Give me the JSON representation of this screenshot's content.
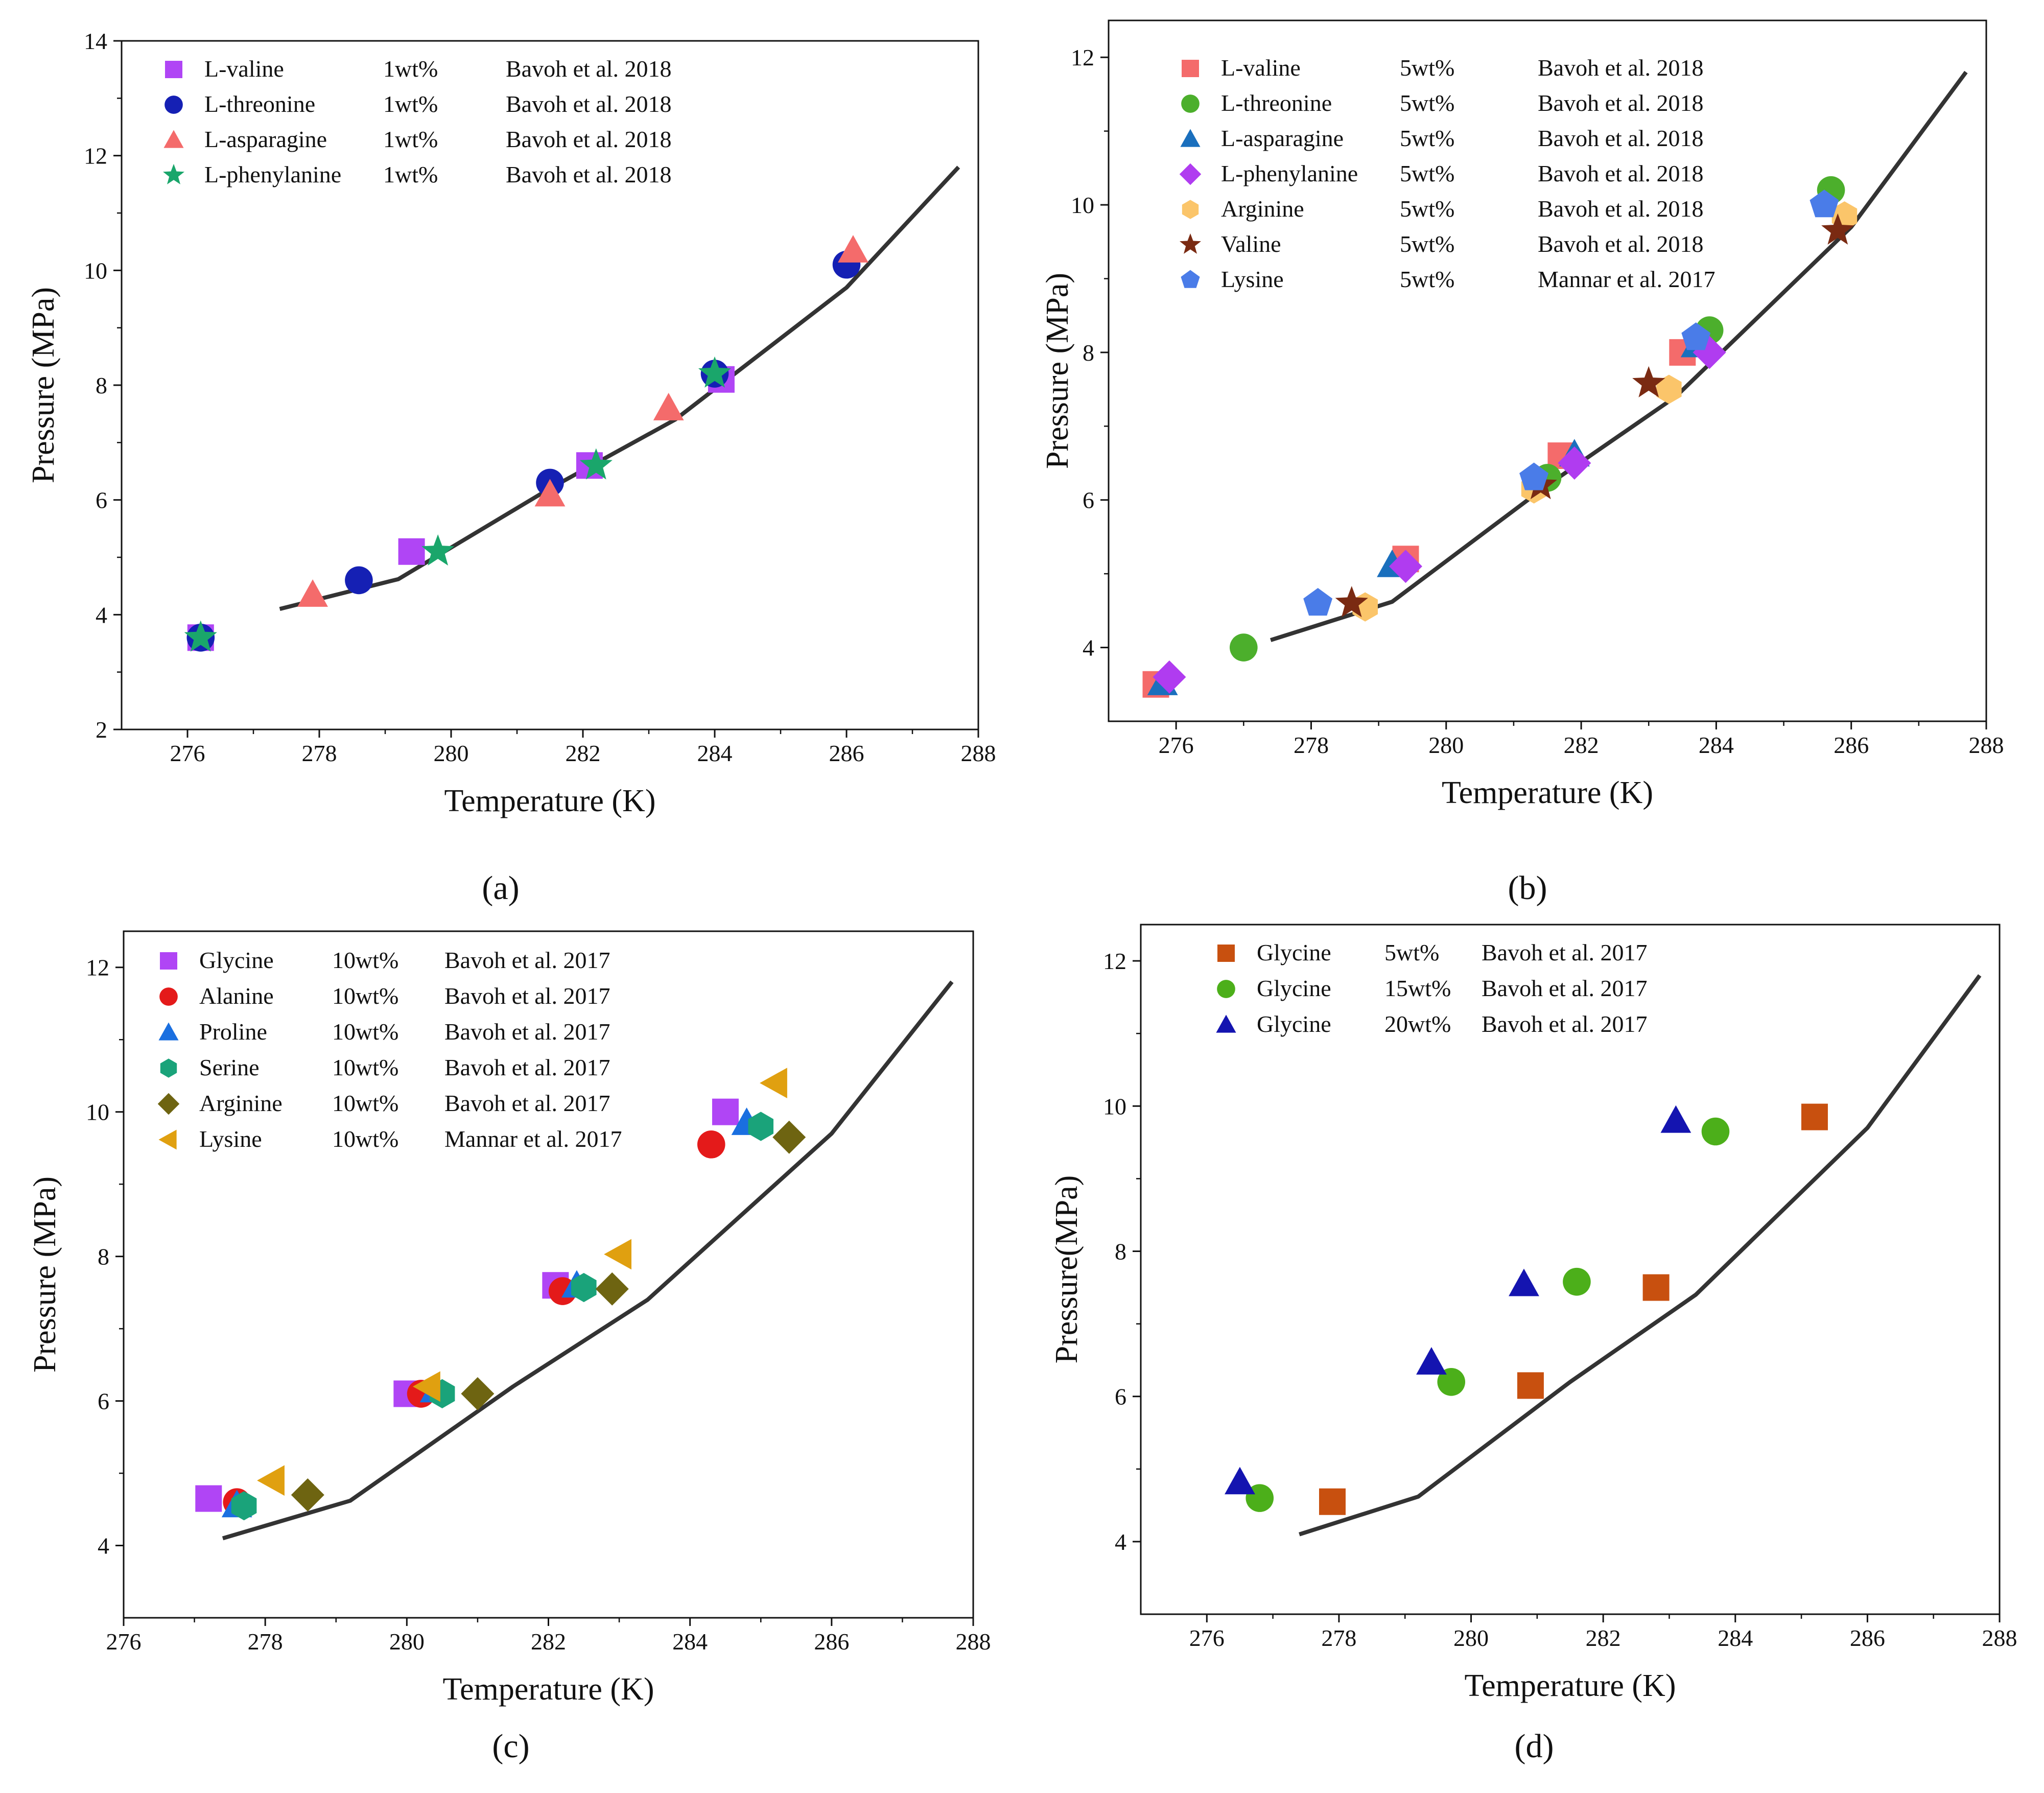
{
  "chart_data": [
    {
      "type": "scatter",
      "panel_label": "(a)",
      "xlabel": "Temperature (K)",
      "ylabel": "Pressure (MPa)",
      "xlim": [
        275,
        288
      ],
      "ylim": [
        2,
        14
      ],
      "xticks": [
        "276",
        "278",
        "280",
        "282",
        "284",
        "286",
        "288"
      ],
      "yticks": [
        "2",
        "4",
        "6",
        "8",
        "10",
        "12",
        "14"
      ],
      "legend_position": "top-left",
      "series": [
        {
          "name": "L-valine",
          "conc": "1wt%",
          "ref": "Bavoh et al. 2018",
          "marker": "square",
          "color": "#b045f5",
          "points": [
            [
              276.2,
              3.6
            ],
            [
              279.4,
              5.1
            ],
            [
              282.1,
              6.6
            ],
            [
              284.1,
              8.1
            ]
          ]
        },
        {
          "name": "L-threonine",
          "conc": "1wt%",
          "ref": "Bavoh et al. 2018",
          "marker": "circle",
          "color": "#1520b4",
          "points": [
            [
              276.2,
              3.6
            ],
            [
              278.6,
              4.6
            ],
            [
              281.5,
              6.3
            ],
            [
              284.0,
              8.2
            ],
            [
              286.0,
              10.1
            ]
          ]
        },
        {
          "name": "L-asparagine",
          "conc": "1wt%",
          "ref": "Bavoh et al. 2018",
          "marker": "triangle",
          "color": "#f46b6b",
          "points": [
            [
              277.9,
              4.35
            ],
            [
              281.5,
              6.1
            ],
            [
              283.3,
              7.6
            ],
            [
              286.1,
              10.35
            ]
          ]
        },
        {
          "name": "L-phenylanine",
          "conc": "1wt%",
          "ref": "Bavoh et al. 2018",
          "marker": "star",
          "color": "#1aa66b",
          "points": [
            [
              276.2,
              3.6
            ],
            [
              279.8,
              5.1
            ],
            [
              282.2,
              6.6
            ],
            [
              284.0,
              8.2
            ]
          ]
        }
      ],
      "model_line": [
        [
          277.4,
          4.1
        ],
        [
          279.2,
          4.62
        ],
        [
          281.5,
          6.2
        ],
        [
          283.4,
          7.4
        ],
        [
          286.0,
          9.7
        ],
        [
          287.7,
          11.8
        ]
      ]
    },
    {
      "type": "scatter",
      "panel_label": "(b)",
      "xlabel": "Temperature (K)",
      "ylabel": "Pressure (MPa)",
      "xlim": [
        275,
        288
      ],
      "ylim": [
        3,
        12.5
      ],
      "xticks": [
        "276",
        "278",
        "280",
        "282",
        "284",
        "286",
        "288"
      ],
      "yticks": [
        "4",
        "6",
        "8",
        "10",
        "12"
      ],
      "legend_position": "top-left",
      "series": [
        {
          "name": "L-valine",
          "conc": "5wt%",
          "ref": "Bavoh et al. 2018",
          "marker": "square",
          "color": "#f46b6b",
          "points": [
            [
              275.7,
              3.5
            ],
            [
              279.4,
              5.2
            ],
            [
              281.7,
              6.6
            ],
            [
              283.5,
              8.0
            ]
          ]
        },
        {
          "name": "L-threonine",
          "conc": "5wt%",
          "ref": "Bavoh et al. 2018",
          "marker": "circle",
          "color": "#4caf2c",
          "points": [
            [
              277.0,
              4.0
            ],
            [
              281.5,
              6.3
            ],
            [
              283.9,
              8.3
            ],
            [
              285.7,
              10.2
            ]
          ]
        },
        {
          "name": "L-asparagine",
          "conc": "5wt%",
          "ref": "Bavoh et al. 2018",
          "marker": "triangle",
          "color": "#1a6fbd",
          "points": [
            [
              275.8,
              3.52
            ],
            [
              279.2,
              5.12
            ],
            [
              281.9,
              6.62
            ],
            [
              283.7,
              8.1
            ]
          ]
        },
        {
          "name": "L-phenylanine",
          "conc": "5wt%",
          "ref": "Bavoh et al.  2018",
          "marker": "diamond",
          "color": "#b03cf0",
          "points": [
            [
              275.9,
              3.6
            ],
            [
              279.4,
              5.1
            ],
            [
              281.9,
              6.5
            ],
            [
              283.9,
              8.0
            ]
          ]
        },
        {
          "name": "Arginine",
          "conc": "5wt%",
          "ref": "Bavoh et al.  2018",
          "marker": "hexagon",
          "color": "#fbc56a",
          "points": [
            [
              278.8,
              4.55
            ],
            [
              281.3,
              6.15
            ],
            [
              283.3,
              7.5
            ],
            [
              285.9,
              9.85
            ]
          ]
        },
        {
          "name": "Valine",
          "conc": "5wt%",
          "ref": "Bavoh et al.  2018",
          "marker": "star",
          "color": "#7a2a12",
          "points": [
            [
              278.6,
              4.6
            ],
            [
              281.4,
              6.2
            ],
            [
              283.0,
              7.58
            ],
            [
              285.8,
              9.65
            ]
          ]
        },
        {
          "name": "Lysine",
          "conc": "5wt%",
          "ref": "Mannar et al. 2017",
          "marker": "pentagon",
          "color": "#4a7ce8",
          "points": [
            [
              278.1,
              4.6
            ],
            [
              281.3,
              6.3
            ],
            [
              283.7,
              8.2
            ],
            [
              285.6,
              10.0
            ]
          ]
        }
      ],
      "model_line": [
        [
          277.4,
          4.1
        ],
        [
          279.2,
          4.62
        ],
        [
          281.5,
          6.2
        ],
        [
          283.4,
          7.4
        ],
        [
          286.0,
          9.7
        ],
        [
          287.7,
          11.8
        ]
      ]
    },
    {
      "type": "scatter",
      "panel_label": "(c)",
      "xlabel": "Temperature (K)",
      "ylabel": "Pressure (MPa)",
      "xlim": [
        276,
        288
      ],
      "ylim": [
        3,
        12.5
      ],
      "xticks": [
        "276",
        "278",
        "280",
        "282",
        "284",
        "286",
        "288"
      ],
      "yticks": [
        "4",
        "6",
        "8",
        "10",
        "12"
      ],
      "legend_position": "top-left",
      "series": [
        {
          "name": "Glycine",
          "conc": "10wt%",
          "ref": "Bavoh et al. 2017",
          "marker": "square",
          "color": "#b045f5",
          "points": [
            [
              277.2,
              4.65
            ],
            [
              280.0,
              6.1
            ],
            [
              282.1,
              7.6
            ],
            [
              284.5,
              10.0
            ]
          ]
        },
        {
          "name": "Alanine",
          "conc": "10wt%",
          "ref": "Bavoh et al. 2017",
          "marker": "circle",
          "color": "#e41a1a",
          "points": [
            [
              277.6,
              4.6
            ],
            [
              280.2,
              6.1
            ],
            [
              282.2,
              7.52
            ],
            [
              284.3,
              9.55
            ]
          ]
        },
        {
          "name": "Proline",
          "conc": "10wt%",
          "ref": "Bavoh et al. 2017",
          "marker": "triangle",
          "color": "#1a6fe0",
          "points": [
            [
              277.6,
              4.56
            ],
            [
              280.4,
              6.15
            ],
            [
              282.4,
              7.6
            ],
            [
              284.8,
              9.85
            ]
          ]
        },
        {
          "name": "Serine",
          "conc": "10wt%",
          "ref": "Bavoh et al. 2017",
          "marker": "hexagon",
          "color": "#1aa37a",
          "points": [
            [
              277.7,
              4.55
            ],
            [
              280.5,
              6.1
            ],
            [
              282.5,
              7.57
            ],
            [
              285.0,
              9.8
            ]
          ]
        },
        {
          "name": "Arginine",
          "conc": "10wt%",
          "ref": "Bavoh et al. 2017",
          "marker": "diamond",
          "color": "#6e6411",
          "points": [
            [
              278.6,
              4.7
            ],
            [
              281.0,
              6.1
            ],
            [
              282.9,
              7.55
            ],
            [
              285.4,
              9.65
            ]
          ]
        },
        {
          "name": "Lysine",
          "conc": "10wt%",
          "ref": "Mannar et al. 2017",
          "marker": "triangle-left",
          "color": "#e0a010",
          "points": [
            [
              278.1,
              4.9
            ],
            [
              280.3,
              6.2
            ],
            [
              283.0,
              8.03
            ],
            [
              285.2,
              10.4
            ]
          ]
        }
      ],
      "model_line": [
        [
          277.4,
          4.1
        ],
        [
          279.2,
          4.62
        ],
        [
          281.5,
          6.2
        ],
        [
          283.4,
          7.4
        ],
        [
          286.0,
          9.7
        ],
        [
          287.7,
          11.8
        ]
      ]
    },
    {
      "type": "scatter",
      "panel_label": "(d)",
      "xlabel": "Temperature (K)",
      "ylabel": "Pressure(MPa)",
      "xlim": [
        275,
        288
      ],
      "ylim": [
        3,
        12.5
      ],
      "xticks": [
        "276",
        "278",
        "280",
        "282",
        "284",
        "286",
        "288"
      ],
      "yticks": [
        "4",
        "6",
        "8",
        "10",
        "12"
      ],
      "legend_position": "top-left",
      "series": [
        {
          "name": "Glycine",
          "conc": "5wt%",
          "ref": "Bavoh et al. 2017",
          "marker": "square",
          "color": "#c8500f",
          "points": [
            [
              277.9,
              4.55
            ],
            [
              280.9,
              6.15
            ],
            [
              282.8,
              7.5
            ],
            [
              285.2,
              9.85
            ]
          ]
        },
        {
          "name": "Glycine",
          "conc": "15wt%",
          "ref": "Bavoh et al. 2017",
          "marker": "circle",
          "color": "#4caf1a",
          "points": [
            [
              276.8,
              4.6
            ],
            [
              279.7,
              6.2
            ],
            [
              281.6,
              7.58
            ],
            [
              283.7,
              9.65
            ]
          ]
        },
        {
          "name": "Glycine",
          "conc": "20wt%",
          "ref": "Bavoh et al. 2017",
          "marker": "triangle",
          "color": "#1414b0",
          "points": [
            [
              276.5,
              4.82
            ],
            [
              279.4,
              6.47
            ],
            [
              280.8,
              7.55
            ],
            [
              283.1,
              9.8
            ]
          ]
        }
      ],
      "model_line": [
        [
          277.4,
          4.1
        ],
        [
          279.2,
          4.62
        ],
        [
          281.5,
          6.2
        ],
        [
          283.4,
          7.4
        ],
        [
          286.0,
          9.7
        ],
        [
          287.7,
          11.8
        ]
      ]
    }
  ]
}
